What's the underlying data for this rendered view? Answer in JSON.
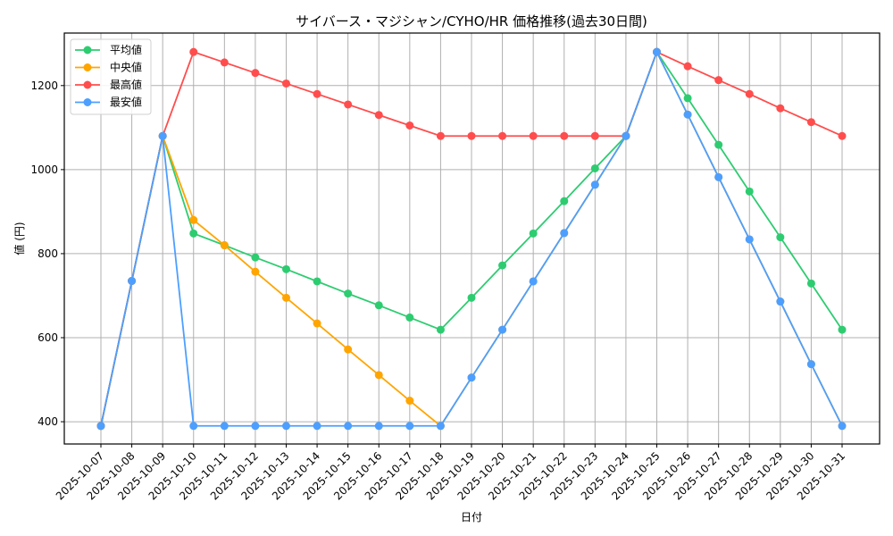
{
  "chart_data": {
    "type": "line",
    "title": "サイバース・マジシャン/CYHO/HR 価格推移(過去30日間)",
    "xlabel": "日付",
    "ylabel": "値 (円)",
    "ylim": [
      347,
      1325
    ],
    "yticks": [
      400,
      600,
      800,
      1000,
      1200
    ],
    "grid": true,
    "legend_position": "upper left",
    "categories": [
      "2025-10-07",
      "2025-10-08",
      "2025-10-09",
      "2025-10-10",
      "2025-10-11",
      "2025-10-12",
      "2025-10-13",
      "2025-10-14",
      "2025-10-15",
      "2025-10-16",
      "2025-10-17",
      "2025-10-18",
      "2025-10-19",
      "2025-10-20",
      "2025-10-21",
      "2025-10-22",
      "2025-10-23",
      "2025-10-24",
      "2025-10-25",
      "2025-10-26",
      "2025-10-27",
      "2025-10-28",
      "2025-10-29",
      "2025-10-30",
      "2025-10-31"
    ],
    "series": [
      {
        "name": "平均値",
        "color": "#2ecc71",
        "values": [
          390,
          735,
          1080,
          848,
          820,
          791,
          763,
          734,
          705,
          677,
          648,
          619,
          695,
          772,
          848,
          925,
          1003,
          1080,
          1280,
          1170,
          1059,
          948,
          839,
          729,
          619
        ]
      },
      {
        "name": "中央値",
        "color": "#ffa500",
        "values": [
          390,
          735,
          1080,
          880,
          820,
          757,
          695,
          634,
          572,
          511,
          450,
          390,
          505,
          619,
          734,
          849,
          964,
          1080,
          1280,
          1131,
          982,
          834,
          686,
          537,
          390
        ]
      },
      {
        "name": "最高値",
        "color": "#ff4d4d",
        "values": [
          390,
          735,
          1080,
          1280,
          1255,
          1230,
          1205,
          1180,
          1155,
          1130,
          1105,
          1080,
          1080,
          1080,
          1080,
          1080,
          1080,
          1080,
          1280,
          1246,
          1213,
          1180,
          1146,
          1113,
          1080
        ]
      },
      {
        "name": "最安値",
        "color": "#4d9fff",
        "values": [
          390,
          735,
          1080,
          390,
          390,
          390,
          390,
          390,
          390,
          390,
          390,
          390,
          505,
          619,
          734,
          849,
          964,
          1080,
          1280,
          1131,
          982,
          834,
          686,
          537,
          390
        ]
      }
    ]
  }
}
